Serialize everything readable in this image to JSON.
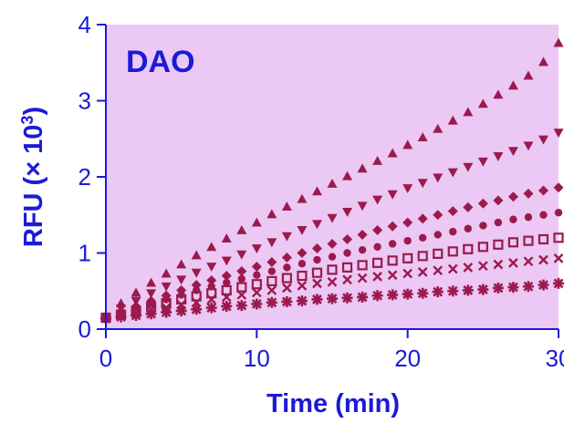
{
  "colors": {
    "plot_background": "#ecc8f4",
    "axis": "#1a1ad8",
    "marker": "#9b1a4e"
  },
  "chart_data": {
    "type": "scatter",
    "title": "DAO",
    "xlabel": "Time (min)",
    "ylabel_main": "RFU (× 10",
    "ylabel_sup": "3",
    "ylabel_close": ")",
    "xlim": [
      0,
      30
    ],
    "ylim": [
      0,
      4
    ],
    "xticks": [
      0,
      10,
      20,
      30
    ],
    "yticks": [
      0,
      1,
      2,
      3,
      4
    ],
    "x_tick_labels": [
      "0",
      "10",
      "20",
      "30"
    ],
    "y_tick_labels": [
      "0",
      "1",
      "2",
      "3",
      "4"
    ],
    "grid": false,
    "legend": "none",
    "x": [
      0,
      1,
      2,
      3,
      4,
      5,
      6,
      7,
      8,
      9,
      10,
      11,
      12,
      13,
      14,
      15,
      16,
      17,
      18,
      19,
      20,
      21,
      22,
      23,
      24,
      25,
      26,
      27,
      28,
      29,
      30
    ],
    "series": [
      {
        "marker": "triangle-up",
        "values": [
          0.17,
          0.34,
          0.48,
          0.61,
          0.73,
          0.85,
          0.97,
          1.08,
          1.19,
          1.3,
          1.4,
          1.51,
          1.61,
          1.71,
          1.81,
          1.91,
          2.01,
          2.11,
          2.21,
          2.31,
          2.42,
          2.52,
          2.63,
          2.74,
          2.85,
          2.96,
          3.08,
          3.2,
          3.33,
          3.51,
          3.76
        ]
      },
      {
        "marker": "triangle-down",
        "values": [
          0.16,
          0.27,
          0.37,
          0.47,
          0.56,
          0.65,
          0.74,
          0.82,
          0.9,
          0.98,
          1.06,
          1.14,
          1.22,
          1.3,
          1.38,
          1.46,
          1.54,
          1.62,
          1.7,
          1.77,
          1.85,
          1.92,
          1.99,
          2.06,
          2.13,
          2.2,
          2.27,
          2.34,
          2.41,
          2.49,
          2.58
        ]
      },
      {
        "marker": "diamond",
        "values": [
          0.16,
          0.23,
          0.3,
          0.37,
          0.44,
          0.51,
          0.58,
          0.64,
          0.7,
          0.76,
          0.82,
          0.88,
          0.94,
          1.0,
          1.06,
          1.12,
          1.18,
          1.24,
          1.3,
          1.35,
          1.4,
          1.45,
          1.5,
          1.55,
          1.6,
          1.65,
          1.69,
          1.74,
          1.78,
          1.82,
          1.86
        ]
      },
      {
        "marker": "circle",
        "values": [
          0.15,
          0.21,
          0.27,
          0.33,
          0.39,
          0.45,
          0.51,
          0.56,
          0.61,
          0.66,
          0.71,
          0.76,
          0.81,
          0.86,
          0.91,
          0.95,
          1.0,
          1.04,
          1.08,
          1.12,
          1.16,
          1.2,
          1.24,
          1.28,
          1.32,
          1.36,
          1.4,
          1.44,
          1.47,
          1.5,
          1.53
        ]
      },
      {
        "marker": "square",
        "values": [
          0.15,
          0.19,
          0.24,
          0.29,
          0.34,
          0.39,
          0.43,
          0.47,
          0.51,
          0.55,
          0.59,
          0.63,
          0.67,
          0.7,
          0.74,
          0.78,
          0.81,
          0.84,
          0.87,
          0.9,
          0.93,
          0.96,
          0.99,
          1.02,
          1.05,
          1.08,
          1.11,
          1.14,
          1.16,
          1.18,
          1.2
        ]
      },
      {
        "marker": "cross",
        "values": [
          0.15,
          0.18,
          0.21,
          0.25,
          0.28,
          0.32,
          0.35,
          0.39,
          0.42,
          0.45,
          0.48,
          0.51,
          0.54,
          0.57,
          0.6,
          0.62,
          0.65,
          0.67,
          0.69,
          0.71,
          0.73,
          0.75,
          0.77,
          0.79,
          0.81,
          0.83,
          0.85,
          0.87,
          0.89,
          0.91,
          0.93
        ]
      },
      {
        "marker": "star",
        "values": [
          0.14,
          0.16,
          0.18,
          0.2,
          0.22,
          0.24,
          0.26,
          0.28,
          0.3,
          0.31,
          0.33,
          0.35,
          0.36,
          0.37,
          0.39,
          0.4,
          0.41,
          0.42,
          0.44,
          0.45,
          0.46,
          0.47,
          0.49,
          0.5,
          0.51,
          0.52,
          0.54,
          0.55,
          0.56,
          0.58,
          0.6
        ]
      }
    ]
  }
}
